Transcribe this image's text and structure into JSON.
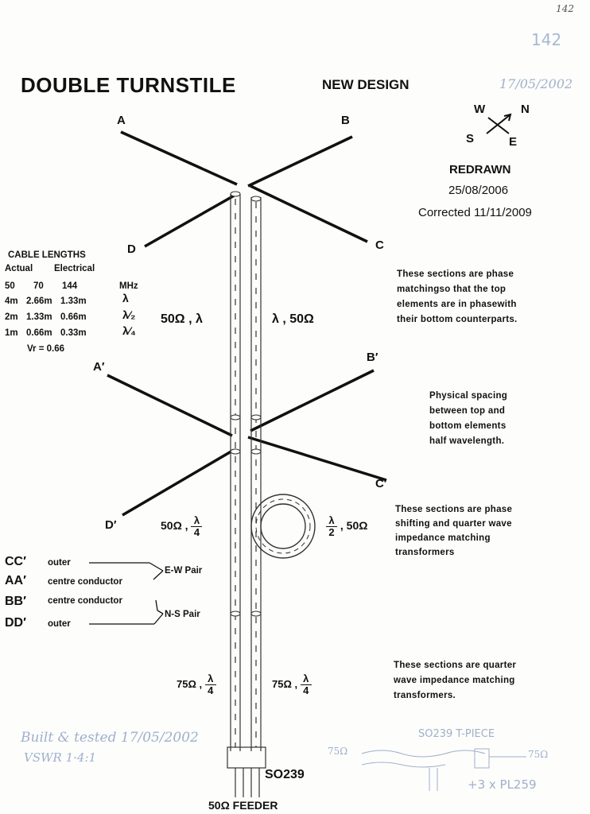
{
  "page_number_top": "142",
  "page_number_pen": "142",
  "title": "DOUBLE  TURNSTILE",
  "subtitle": "NEW DESIGN",
  "date_pen": "17/05/2002",
  "compass": {
    "w": "W",
    "n": "N",
    "s": "S",
    "e": "E"
  },
  "redrawn": {
    "label": "REDRAWN",
    "date": "25/08/2006",
    "corrected": "Corrected 11/11/2009"
  },
  "elements": {
    "a": "A",
    "b": "B",
    "c": "C",
    "d": "D",
    "a2": "A′",
    "b2": "B′",
    "c2": "C′",
    "d2": "D′"
  },
  "cable_lengths": {
    "title": "CABLE LENGTHS",
    "head_actual": "Actual",
    "head_electrical": "Electrical",
    "units": [
      "50",
      "70",
      "144",
      "MHz"
    ],
    "rows": [
      [
        "4m",
        "2.66m",
        "1.33m",
        "λ"
      ],
      [
        "2m",
        "1.33m",
        "0.66m",
        "λ⁄₂"
      ],
      [
        "1m",
        "0.66m",
        "0.33m",
        "λ⁄₄"
      ]
    ],
    "vr": "Vr = 0.66"
  },
  "labels": {
    "top_left": "50Ω , λ",
    "top_right": "λ , 50Ω",
    "mid_left_z": "50Ω ,",
    "mid_right_z": ", 50Ω",
    "low_left_z": "75Ω ,",
    "low_right_z": "75Ω ,",
    "lambda": "λ",
    "four": "4",
    "two": "2"
  },
  "notes": {
    "phase_matching": [
      "These sections are phase",
      "matchingso that the top",
      "elements are in phasewith",
      "their bottom counterparts."
    ],
    "spacing": [
      "Physical spacing",
      "between top and",
      "bottom elements",
      "half wavelength."
    ],
    "phase_shifting": [
      "These sections are phase",
      "shifting and quarter wave",
      "impedance matching",
      "transformers"
    ],
    "quarter_wave": [
      "These sections are quarter",
      "wave impedance matching",
      "transformers."
    ]
  },
  "connections": {
    "cc": "CC′",
    "cc_desc": "outer",
    "aa": "AA′",
    "aa_desc": "centre conductor",
    "bb": "BB′",
    "bb_desc": "centre conductor",
    "dd": "DD′",
    "dd_desc": "outer",
    "ew": "E-W Pair",
    "ns": "N-S Pair"
  },
  "connector": "SO239",
  "feeder": "50Ω FEEDER",
  "handwritten": {
    "built": "Built & tested 17/05/2002",
    "vswr": "VSWR  1·4:1",
    "so239_tpiece": "SO239  T-PIECE",
    "left_75": "75Ω",
    "right_75": "75Ω",
    "pl259": "+3 x PL259"
  }
}
